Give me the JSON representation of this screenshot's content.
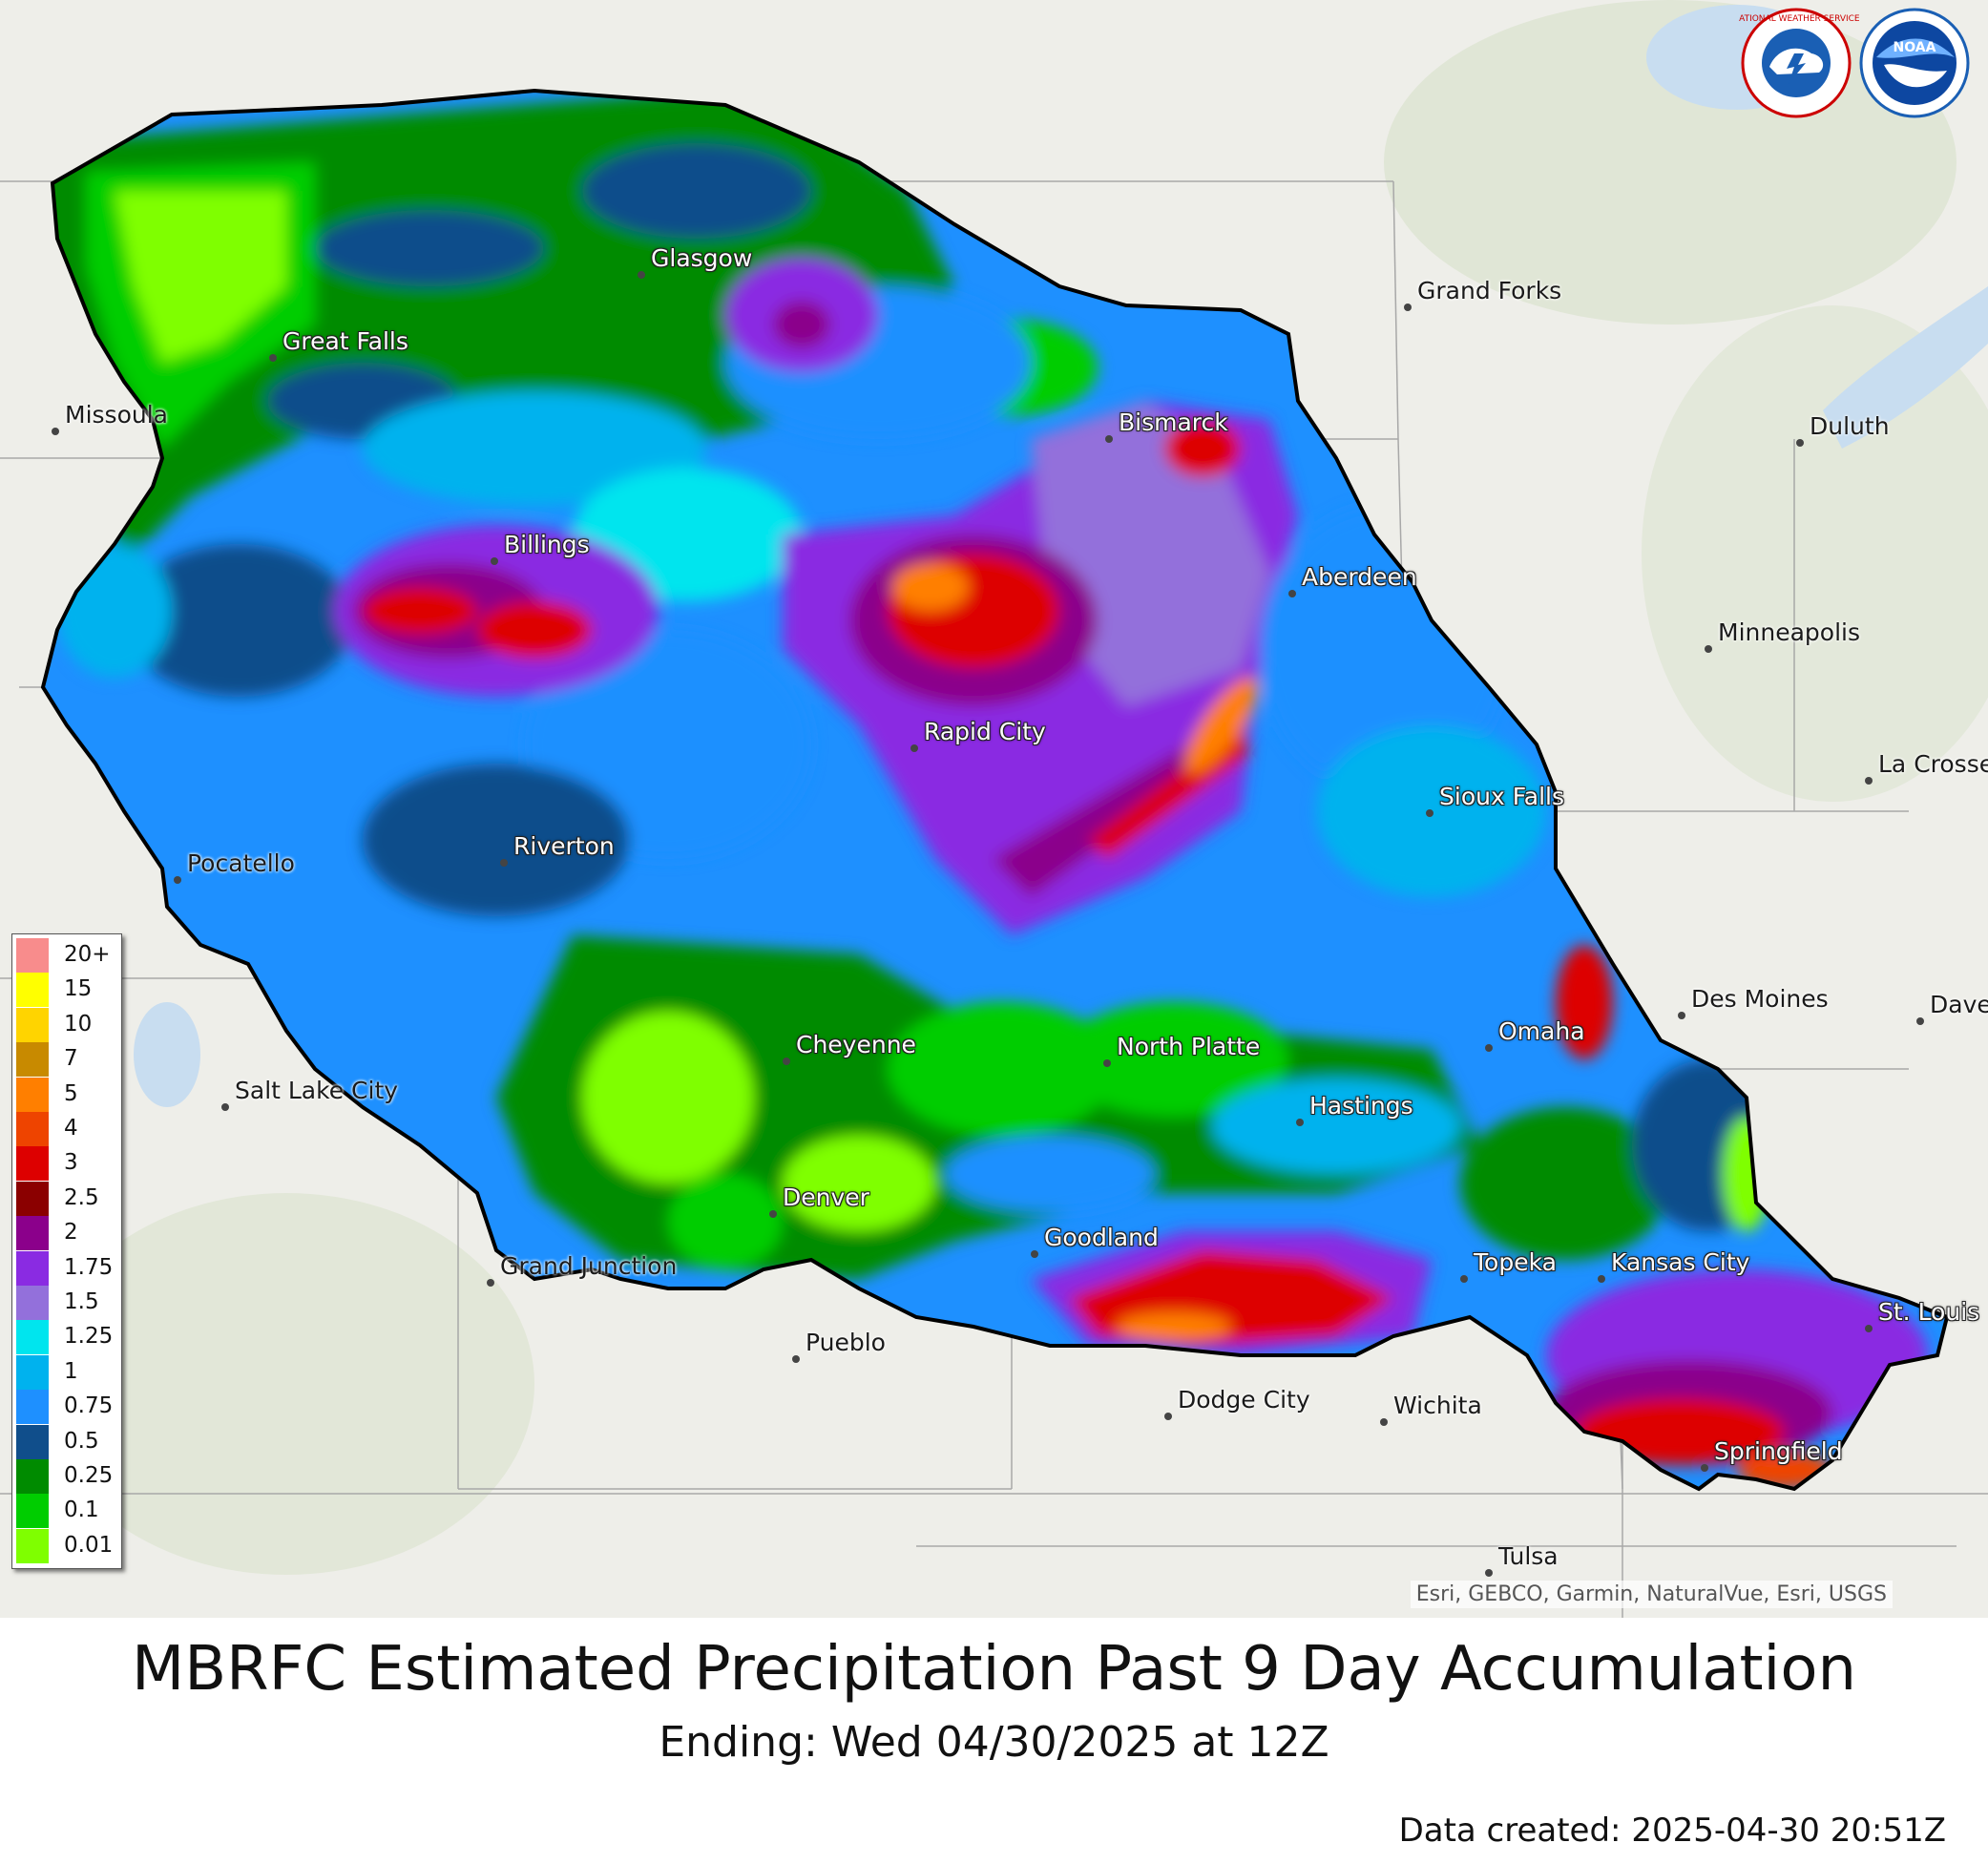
{
  "map": {
    "attribution": "Esri, GEBCO, Garmin, NaturalVue, Esri, USGS",
    "colors": {
      "basin_outline": "#000000",
      "land": "#eeeee9",
      "water": "#c8ddf0"
    }
  },
  "cities": [
    {
      "name": "Glasgow",
      "inside": true
    },
    {
      "name": "Great Falls",
      "inside": true
    },
    {
      "name": "Missoula",
      "inside": false
    },
    {
      "name": "Grand Forks",
      "inside": false
    },
    {
      "name": "Bismarck",
      "inside": true
    },
    {
      "name": "Duluth",
      "inside": false
    },
    {
      "name": "Billings",
      "inside": true
    },
    {
      "name": "Aberdeen",
      "inside": true
    },
    {
      "name": "Minneapolis",
      "inside": false
    },
    {
      "name": "Rapid City",
      "inside": true
    },
    {
      "name": "La Crosse",
      "inside": false
    },
    {
      "name": "Sioux Falls",
      "inside": true
    },
    {
      "name": "Pocatello",
      "inside": false
    },
    {
      "name": "Riverton",
      "inside": true
    },
    {
      "name": "Des Moines",
      "inside": false
    },
    {
      "name": "Davenport",
      "inside": false
    },
    {
      "name": "Omaha",
      "inside": true
    },
    {
      "name": "Cheyenne",
      "inside": true
    },
    {
      "name": "North Platte",
      "inside": true
    },
    {
      "name": "Salt Lake City",
      "inside": false
    },
    {
      "name": "Hastings",
      "inside": true
    },
    {
      "name": "Denver",
      "inside": true
    },
    {
      "name": "Goodland",
      "inside": true
    },
    {
      "name": "Grand Junction",
      "inside": false
    },
    {
      "name": "Topeka",
      "inside": true
    },
    {
      "name": "Kansas City",
      "inside": true
    },
    {
      "name": "St. Louis",
      "inside": true
    },
    {
      "name": "Pueblo",
      "inside": false
    },
    {
      "name": "Dodge City",
      "inside": false
    },
    {
      "name": "Wichita",
      "inside": false
    },
    {
      "name": "Springfield",
      "inside": true
    },
    {
      "name": "Tulsa",
      "inside": false
    }
  ],
  "legend": {
    "items": [
      {
        "label": "20+",
        "color": "#f88c8c"
      },
      {
        "label": "15",
        "color": "#ffff00"
      },
      {
        "label": "10",
        "color": "#ffd400"
      },
      {
        "label": "7",
        "color": "#c88a00"
      },
      {
        "label": "5",
        "color": "#ff7f00"
      },
      {
        "label": "4",
        "color": "#ee4400"
      },
      {
        "label": "3",
        "color": "#dd0000"
      },
      {
        "label": "2.5",
        "color": "#8b0000"
      },
      {
        "label": "2",
        "color": "#8b008b"
      },
      {
        "label": "1.75",
        "color": "#8a2be2"
      },
      {
        "label": "1.5",
        "color": "#9370db"
      },
      {
        "label": "1.25",
        "color": "#00e5ee"
      },
      {
        "label": "1",
        "color": "#00b2ee"
      },
      {
        "label": "0.75",
        "color": "#1e90ff"
      },
      {
        "label": "0.5",
        "color": "#104e8b"
      },
      {
        "label": "0.25",
        "color": "#008b00"
      },
      {
        "label": "0.1",
        "color": "#00cd00"
      },
      {
        "label": "0.01",
        "color": "#7fff00"
      }
    ]
  },
  "title": "MBRFC Estimated Precipitation Past 9 Day Accumulation",
  "subtitle": "Ending: Wed 04/30/2025 at 12Z",
  "created": "Data created: 2025-04-30 20:51Z",
  "logos": {
    "nws_text": "NATIONAL WEATHER SERVICE",
    "noaa_text": "NOAA"
  }
}
